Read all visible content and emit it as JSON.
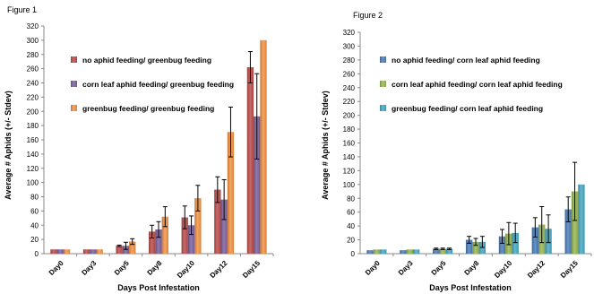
{
  "chart_data": [
    {
      "type": "bar",
      "title": "Figure 1",
      "xlabel": "Days Post Infestation",
      "ylabel": "Average # Aphids (+/- Stdev)",
      "ylim": [
        0,
        320
      ],
      "yticks": [
        0,
        20,
        40,
        60,
        80,
        100,
        120,
        140,
        160,
        180,
        200,
        220,
        240,
        260,
        280,
        300,
        320
      ],
      "categories": [
        "Day0",
        "Day3",
        "Day5",
        "Day8",
        "Day10",
        "Day12",
        "Day15"
      ],
      "legend_position": "upper-left",
      "series": [
        {
          "name": "no aphid feeding/ greenbug feeding",
          "color": "#c0504d",
          "values": [
            6,
            6,
            11,
            31,
            51,
            90,
            262
          ],
          "errors": [
            0,
            0,
            1,
            9,
            16,
            18,
            22
          ]
        },
        {
          "name": "corn leaf aphid feeding/ greenbug feeding",
          "color": "#8064a2",
          "values": [
            6,
            6,
            11,
            34,
            40,
            76,
            193
          ],
          "errors": [
            0,
            0,
            5,
            11,
            13,
            28,
            60
          ]
        },
        {
          "name": "greenbug feeding/ greenbug feeding",
          "color": "#f79646",
          "values": [
            6,
            6,
            17,
            52,
            78,
            171,
            300
          ],
          "errors": [
            0,
            0,
            4,
            14,
            18,
            35,
            0
          ]
        }
      ]
    },
    {
      "type": "bar",
      "title": "Figure 2",
      "xlabel": "Days Post Infestation",
      "ylabel": "Average # Aphids (+/- Stdev)",
      "ylim": [
        0,
        320
      ],
      "yticks": [
        0,
        20,
        40,
        60,
        80,
        100,
        120,
        140,
        160,
        180,
        200,
        220,
        240,
        260,
        280,
        300,
        320
      ],
      "categories": [
        "Day0",
        "Day3",
        "Day5",
        "Day8",
        "Day10",
        "Day12",
        "Day15"
      ],
      "legend_position": "upper-left",
      "series": [
        {
          "name": "no aphid feeding/ corn leaf aphid feeding",
          "color": "#4f81bd",
          "values": [
            5,
            5,
            7,
            20,
            25,
            38,
            64
          ],
          "errors": [
            0,
            0,
            1,
            5,
            10,
            14,
            18
          ]
        },
        {
          "name": "corn leaf aphid feeding/ corn leaf aphid feeding",
          "color": "#9bbb59",
          "values": [
            6,
            6,
            7,
            17,
            29,
            42,
            90
          ],
          "errors": [
            0,
            0,
            1,
            5,
            16,
            26,
            42
          ]
        },
        {
          "name": "greenbug feeding/ corn leaf aphid feeding",
          "color": "#4bacc6",
          "values": [
            6,
            6,
            7,
            17,
            30,
            36,
            100
          ],
          "errors": [
            0,
            0,
            1,
            8,
            14,
            20,
            0
          ]
        }
      ]
    }
  ]
}
